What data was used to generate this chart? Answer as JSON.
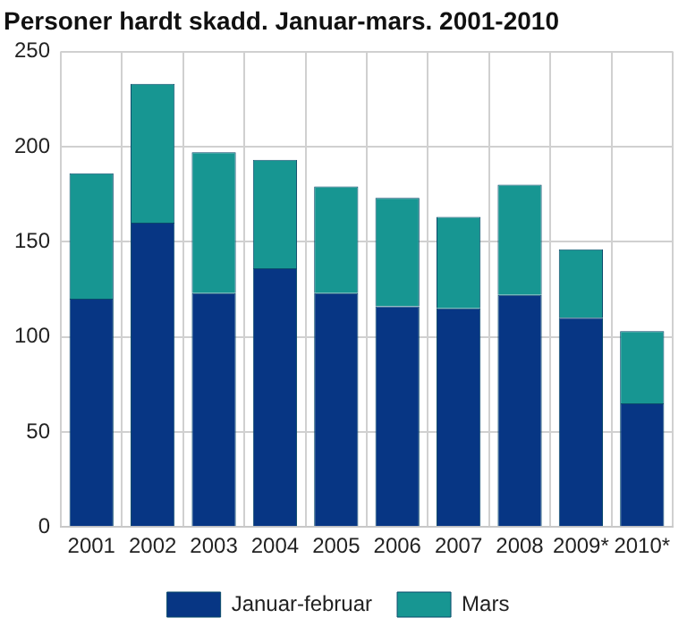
{
  "chart_data": {
    "type": "bar",
    "title": "Personer hardt skadd. Januar-mars. 2001-2010",
    "categories": [
      "2001",
      "2002",
      "2003",
      "2004",
      "2005",
      "2006",
      "2007",
      "2008",
      "2009*",
      "2010*"
    ],
    "series": [
      {
        "name": "Januar-februar",
        "color": "#073684",
        "values": [
          120,
          160,
          123,
          136,
          123,
          116,
          115,
          122,
          110,
          65
        ]
      },
      {
        "name": "Mars",
        "color": "#179692",
        "values": [
          66,
          73,
          74,
          57,
          56,
          57,
          48,
          58,
          36,
          38
        ]
      }
    ],
    "stacked": true,
    "ylim": [
      0,
      250
    ],
    "yticks": [
      0,
      50,
      100,
      150,
      200,
      250
    ],
    "grid": true,
    "legend": "bottom"
  }
}
